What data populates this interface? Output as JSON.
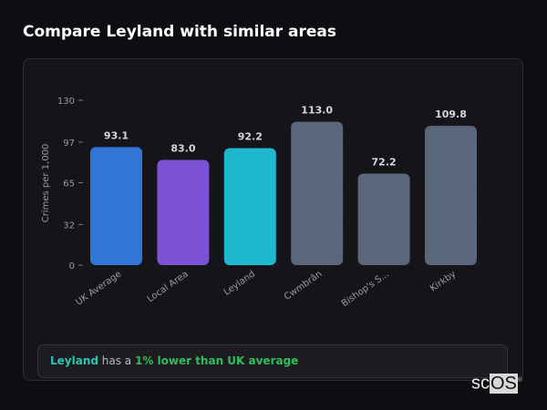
{
  "title": "Compare Leyland with similar areas",
  "chart_data": {
    "type": "bar",
    "title": "",
    "xlabel": "",
    "ylabel": "Crimes per 1,000",
    "ylim": [
      0,
      130
    ],
    "yticks": [
      0,
      32,
      65,
      97,
      130
    ],
    "grid": true,
    "categories": [
      "UK Average",
      "Local Area",
      "Leyland",
      "Cwmbrân",
      "Bishop's S...",
      "Kirkby"
    ],
    "values": [
      93.1,
      83.0,
      92.2,
      113.0,
      72.2,
      109.8
    ],
    "value_labels": [
      "93.1",
      "83.0",
      "92.2",
      "113.0",
      "72.2",
      "109.8"
    ],
    "colors": [
      "#3375d6",
      "#7b52d3",
      "#20b8cf",
      "#5a677a",
      "#5a677a",
      "#5a677a"
    ]
  },
  "callout": {
    "area": "Leyland",
    "middle": " has a ",
    "comparison": "1% lower than UK average"
  },
  "logo": {
    "text_a": "sc",
    "text_b": "OS",
    "mark": "®"
  }
}
